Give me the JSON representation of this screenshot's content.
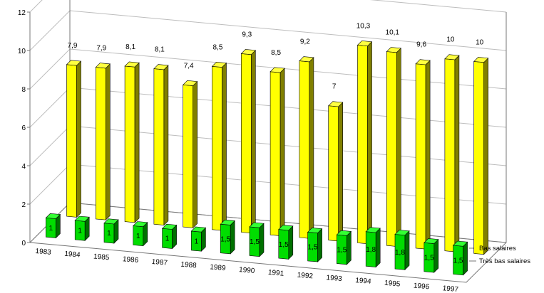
{
  "chart_data": {
    "type": "bar",
    "categories": [
      "1983",
      "1984",
      "1985",
      "1986",
      "1987",
      "1988",
      "1989",
      "1990",
      "1991",
      "1992",
      "1993",
      "1994",
      "1995",
      "1996",
      "1997"
    ],
    "series": [
      {
        "name": "Bas salaires",
        "values": [
          7.9,
          7.9,
          8.1,
          8.1,
          7.4,
          8.5,
          9.3,
          8.5,
          9.2,
          7,
          10.3,
          10.1,
          9.6,
          10,
          10
        ],
        "labels": [
          "7,9",
          "7,9",
          "8,1",
          "8,1",
          "7,4",
          "8,5",
          "9,3",
          "8,5",
          "9,2",
          "7",
          "10,3",
          "10,1",
          "9,6",
          "10",
          "10"
        ]
      },
      {
        "name": "Très bas salaires",
        "values": [
          1,
          1,
          1,
          1,
          1,
          1,
          1.5,
          1.5,
          1.5,
          1.5,
          1.5,
          1.8,
          1.8,
          1.5,
          1.5
        ],
        "labels": [
          "1",
          "1",
          "1",
          "1",
          "1",
          "1",
          "1,5",
          "1,5",
          "1,5",
          "1,5",
          "1,5",
          "1,8",
          "1,8",
          "1,5",
          "1,5"
        ]
      }
    ],
    "title": "",
    "xlabel": "",
    "ylabel": "",
    "ylim": [
      0,
      12
    ],
    "yticks": [
      "0",
      "2",
      "4",
      "6",
      "8",
      "10",
      "12"
    ],
    "grid": true,
    "legend_placement": "right",
    "colors": {
      "bas_front": "#ffff00",
      "bas_side": "#807f00",
      "bas_top": "#ffff40",
      "tres_front": "#00dd00",
      "tres_side": "#007000",
      "tres_top": "#33ff33",
      "gridline": "#bdbdbd"
    }
  }
}
